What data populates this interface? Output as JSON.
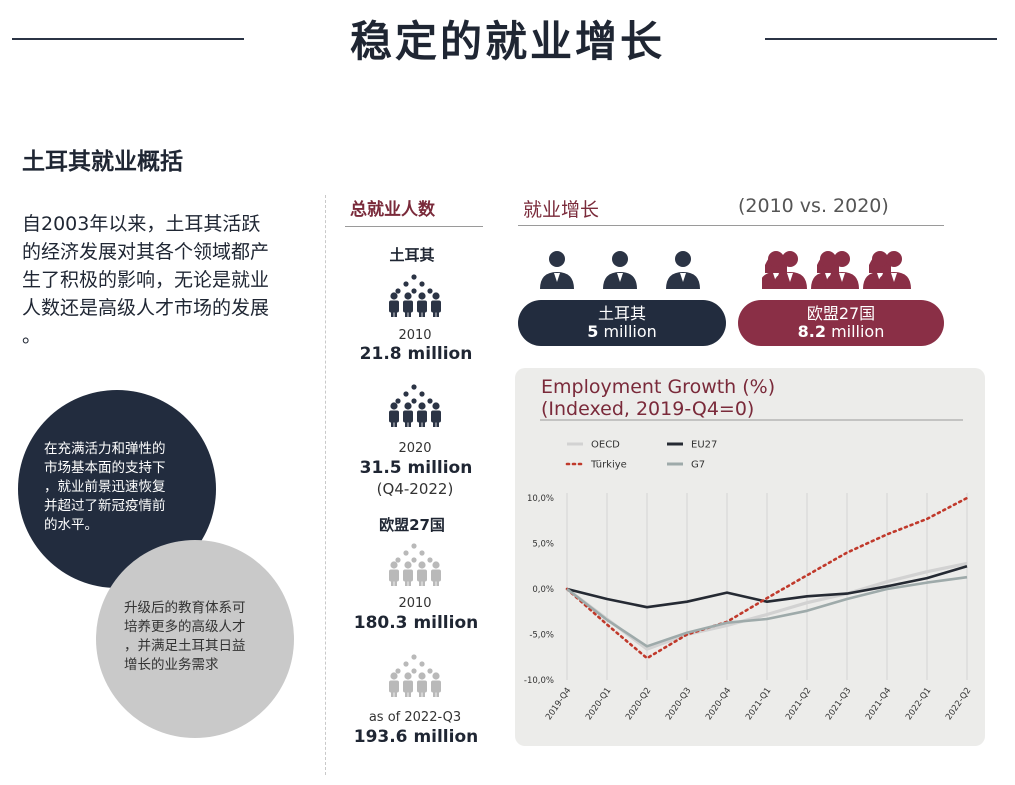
{
  "header": {
    "title": "稳定的就业增长"
  },
  "intro": {
    "subtitle": "土耳其就业概括",
    "lines": [
      "自2003年以来，土耳其活跃",
      "的经济发展对其各个领域都产",
      "生了积极的影响，无论是就业",
      "人数还是高级人才市场的发展",
      "。"
    ]
  },
  "circle_dark": {
    "lines": [
      "在充满活力和弹性的",
      "市场基本面的支持下",
      "，就业前景迅速恢复",
      "并超过了新冠疫情前",
      "的水平。"
    ]
  },
  "circle_light": {
    "lines": [
      "升级后的教育体系可",
      "培养更多的高级人才",
      "，并满足土耳其日益",
      "增长的业务需求"
    ]
  },
  "total_employment": {
    "heading": "总就业人数",
    "turkey_label": "土耳其",
    "t2010_year": "2010",
    "t2010_value": "21.8",
    "t2020_year": "2020",
    "t2020_value": "31.5",
    "t2020_note": "(Q4-2022)",
    "eu_label": "欧盟27国",
    "e2010_year": "2010",
    "e2010_value": "180.3",
    "e2022_year": "as of 2022-Q3",
    "e2022_value": "193.6",
    "unit": "million",
    "crowd_dark": "#2b3445",
    "crowd_light": "#b9b9b9"
  },
  "growth": {
    "heading": "就业增长",
    "period": "(2010 vs. 2020)",
    "turkey_label": "土耳其",
    "turkey_value": "5",
    "eu_label": "欧盟27国",
    "eu_value": "8.2",
    "unit": "million",
    "turkey_color": "#222c3e",
    "eu_color": "#8a2f46",
    "icon_dark": "#2b3445",
    "icon_red": "#8a2f46"
  },
  "chart_data": {
    "type": "line",
    "title_lines": [
      "Employment Growth (%)",
      "(Indexed, 2019-Q4=0)"
    ],
    "x": [
      "2019-Q4",
      "2020-Q1",
      "2020-Q2",
      "2020-Q3",
      "2020-Q4",
      "2021-Q1",
      "2021-Q2",
      "2021-Q3",
      "2021-Q4",
      "2022-Q1",
      "2022-Q2"
    ],
    "ylim": [
      -10,
      10
    ],
    "yticks": [
      10,
      5,
      0,
      -5,
      -10
    ],
    "ytick_labels": [
      "10,0%",
      "5,0%",
      "0,0%",
      "-5,0%",
      "-10,0%"
    ],
    "grid": "vertical",
    "legend": "top-left",
    "series": [
      {
        "name": "OECD",
        "color": "#d2d2d2",
        "style": "solid",
        "width": 3.2,
        "values": [
          0,
          -3.3,
          -6.6,
          -5.0,
          -4.0,
          -2.8,
          -1.5,
          -0.5,
          0.8,
          1.9,
          2.8
        ]
      },
      {
        "name": "EU27",
        "color": "#252a33",
        "style": "solid",
        "width": 2.6,
        "values": [
          0,
          -1.1,
          -2.0,
          -1.4,
          -0.4,
          -1.4,
          -0.8,
          -0.5,
          0.3,
          1.2,
          2.5
        ]
      },
      {
        "name": "Türkiye",
        "color": "#c0392b",
        "style": "dotted",
        "width": 2.6,
        "values": [
          0,
          -3.9,
          -7.6,
          -5.0,
          -3.6,
          -1.0,
          1.5,
          4.0,
          6.0,
          7.7,
          10.0
        ]
      },
      {
        "name": "G7",
        "color": "#9eaaaa",
        "style": "solid",
        "width": 2.6,
        "values": [
          0,
          -3.4,
          -6.3,
          -4.8,
          -3.7,
          -3.3,
          -2.4,
          -1.1,
          0.0,
          0.7,
          1.3
        ]
      }
    ]
  }
}
